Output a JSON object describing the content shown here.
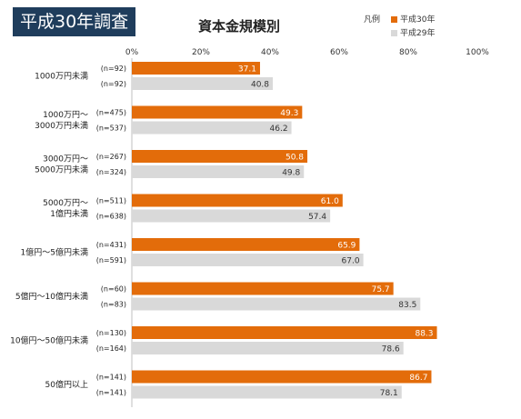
{
  "badge": "平成30年調査",
  "chart_data": {
    "type": "bar",
    "orientation": "horizontal",
    "title": "資本金規模別",
    "xlim": [
      0,
      100
    ],
    "x_ticks": [
      "0%",
      "20%",
      "40%",
      "60%",
      "80%",
      "100%"
    ],
    "legend_title": "凡例",
    "legend_position": "top-right",
    "categories": [
      [
        "1000万円未満"
      ],
      [
        "1000万円～",
        "3000万円未満"
      ],
      [
        "3000万円～",
        "5000万円未満"
      ],
      [
        "5000万円～",
        "1億円未満"
      ],
      [
        "1億円～5億円未満"
      ],
      [
        "5億円～10億円未満"
      ],
      [
        "10億円～50億円未満"
      ],
      [
        "50億円以上"
      ]
    ],
    "series": [
      {
        "name": "平成30年",
        "color": "#e36c0a",
        "label_color": "#ffffff",
        "values": [
          37.1,
          49.3,
          50.8,
          61.0,
          65.9,
          75.7,
          88.3,
          86.7
        ],
        "labels": [
          "37.1",
          "49.3",
          "50.8",
          "61.0",
          "65.9",
          "75.7",
          "88.3",
          "86.7"
        ],
        "n": [
          "(n=92)",
          "(n=475)",
          "(n=267)",
          "(n=511)",
          "(n=431)",
          "(n=60)",
          "(n=130)",
          "(n=141)"
        ]
      },
      {
        "name": "平成29年",
        "color": "#d9d9d9",
        "label_color": "#333333",
        "values": [
          40.8,
          46.2,
          49.8,
          57.4,
          67.0,
          83.5,
          78.6,
          78.1
        ],
        "labels": [
          "40.8",
          "46.2",
          "49.8",
          "57.4",
          "67.0",
          "83.5",
          "78.6",
          "78.1"
        ],
        "n": [
          "(n=92)",
          "(n=537)",
          "(n=324)",
          "(n=638)",
          "(n=591)",
          "(n=83)",
          "(n=164)",
          "(n=141)"
        ]
      }
    ]
  }
}
